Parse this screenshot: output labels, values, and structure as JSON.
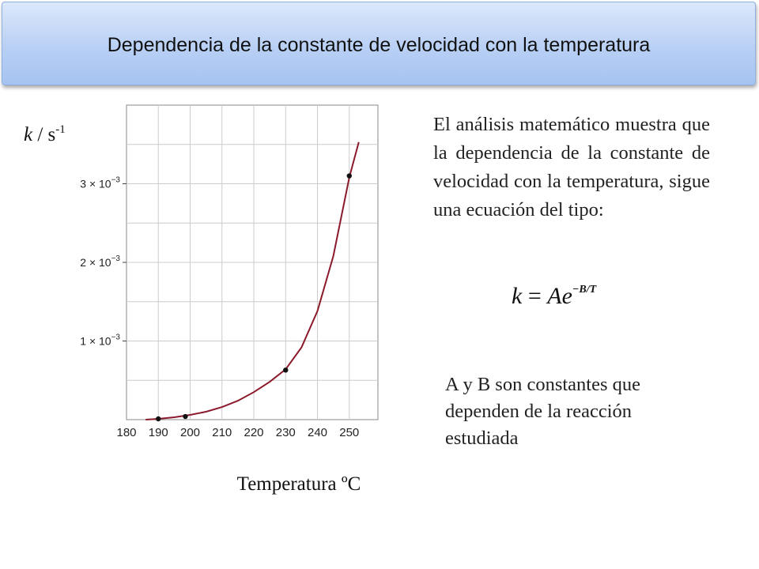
{
  "slide": {
    "title": "Dependencia de la constante de velocidad con la temperatura",
    "paragraph": "El análisis matemático muestra que la dependencia de la constante de velocidad con la temperatura, sigue una ecuación del tipo:",
    "formula": {
      "lhs": "k",
      "equals": "=",
      "rhs_base": "Ae",
      "exponent": "−B/T"
    },
    "note": "A y B son constantes que dependen de la reacción estudiada"
  },
  "chart_data": {
    "type": "line",
    "ylabel_var": "k",
    "ylabel_unit": " / s",
    "ylabel_exp": "-1",
    "xlabel": "Temperatura ºC",
    "xlim": [
      180,
      259
    ],
    "ylim": [
      0,
      0.004
    ],
    "x_ticks": [
      180,
      190,
      200,
      210,
      220,
      230,
      240,
      250
    ],
    "y_ticks": [
      {
        "value": 0.001,
        "label": "1 × 10"
      },
      {
        "value": 0.002,
        "label": "2 × 10"
      },
      {
        "value": 0.003,
        "label": "3 × 10"
      }
    ],
    "y_tick_exponent": "−3",
    "grid": true,
    "points": [
      {
        "x": 190,
        "y": 1e-05
      },
      {
        "x": 198.5,
        "y": 4e-05
      },
      {
        "x": 230,
        "y": 0.00063
      },
      {
        "x": 250,
        "y": 0.0031
      }
    ],
    "curve": [
      [
        186,
        0.0
      ],
      [
        190,
        1e-05
      ],
      [
        195,
        3e-05
      ],
      [
        200,
        6e-05
      ],
      [
        205,
        0.0001
      ],
      [
        210,
        0.00016
      ],
      [
        215,
        0.00024
      ],
      [
        220,
        0.00035
      ],
      [
        225,
        0.00048
      ],
      [
        230,
        0.00064
      ],
      [
        235,
        0.00092
      ],
      [
        240,
        0.00138
      ],
      [
        245,
        0.00208
      ],
      [
        250,
        0.00308
      ],
      [
        253,
        0.00353
      ]
    ],
    "colors": {
      "curve": "#8b1a2b",
      "points": "#111111",
      "grid": "#cccccc"
    }
  }
}
